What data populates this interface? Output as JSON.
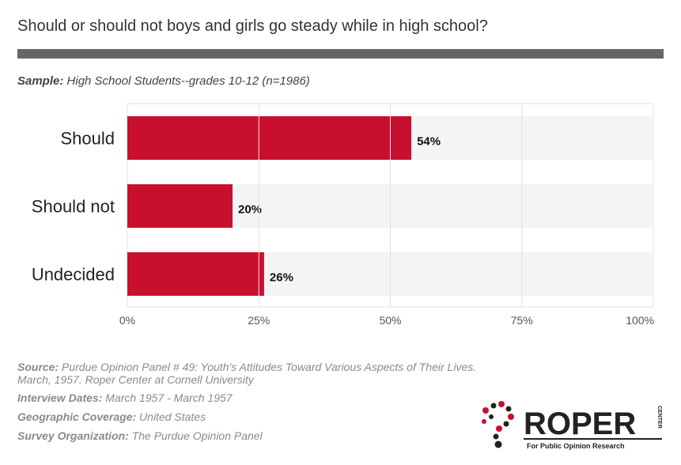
{
  "title": "Should or should not boys and girls go steady while in high school?",
  "sample": {
    "label": "Sample:",
    "text": "High School Students--grades 10-12 (n=1986)"
  },
  "chart_data": {
    "type": "bar",
    "orientation": "horizontal",
    "categories": [
      "Should",
      "Should not",
      "Undecided"
    ],
    "values": [
      54,
      20,
      26
    ],
    "value_labels": [
      "54%",
      "20%",
      "26%"
    ],
    "xlim": [
      0,
      100
    ],
    "xticks": [
      "0%",
      "25%",
      "50%",
      "75%",
      "100%"
    ],
    "grid": true,
    "bar_color": "#c8102e",
    "track_color": "#f4f4f4"
  },
  "footer": {
    "source_label": "Source:",
    "source_text": "Purdue Opinion Panel # 49: Youth's Attitudes Toward Various Aspects of Their Lives. March, 1957. Roper Center at Cornell University",
    "dates_label": "Interview Dates:",
    "dates_text": "March 1957 - March 1957",
    "geo_label": "Geographic Coverage:",
    "geo_text": "United States",
    "org_label": "Survey Organization:",
    "org_text": "The Purdue Opinion Panel"
  },
  "logo": {
    "word": "ROPER",
    "side": "CENTER",
    "tagline": "For Public Opinion Research"
  }
}
